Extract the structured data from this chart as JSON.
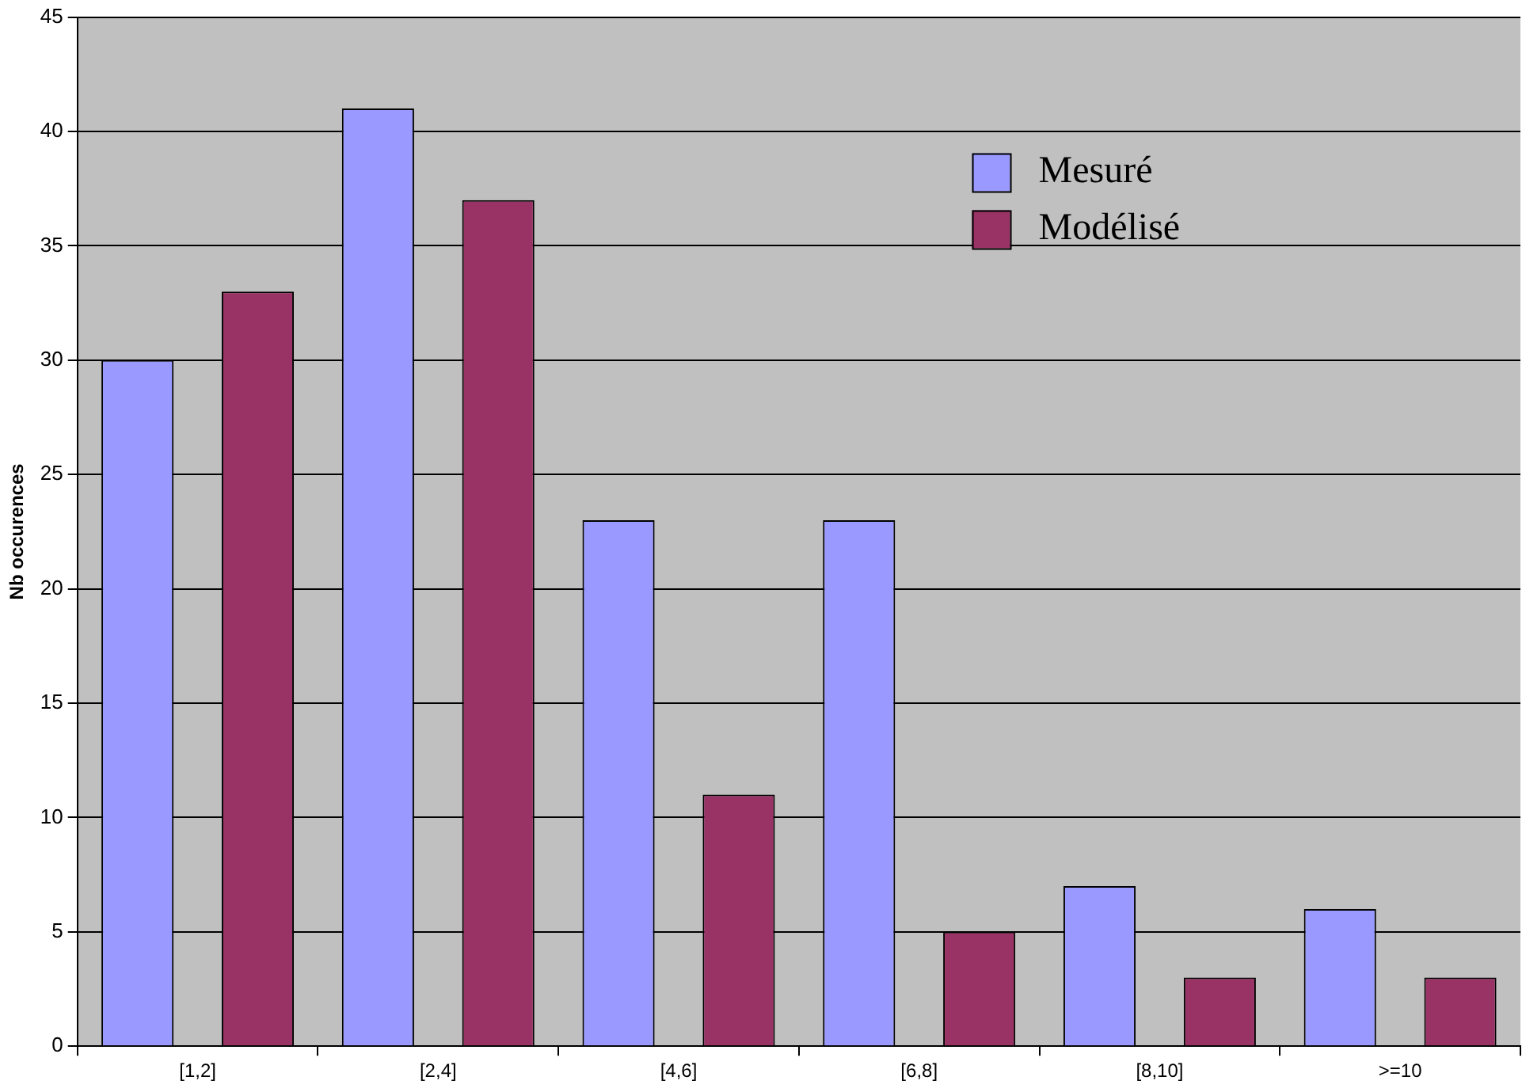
{
  "chart_data": {
    "type": "bar",
    "ylabel": "Nb occurences",
    "categories": [
      "[1,2]",
      "[2,4]",
      "[4,6]",
      "[6,8]",
      "[8,10]",
      ">=10"
    ],
    "series": [
      {
        "name": "Mesuré",
        "color": "#9999ff",
        "values": [
          30,
          41,
          23,
          23,
          7,
          6
        ]
      },
      {
        "name": "Modélisé",
        "color": "#993366",
        "values": [
          33,
          37,
          11,
          5,
          3,
          3
        ]
      }
    ],
    "ylim": [
      0,
      45
    ],
    "yticks": [
      0,
      5,
      10,
      15,
      20,
      25,
      30,
      35,
      40,
      45
    ],
    "grid": "y",
    "legend": "top right"
  }
}
